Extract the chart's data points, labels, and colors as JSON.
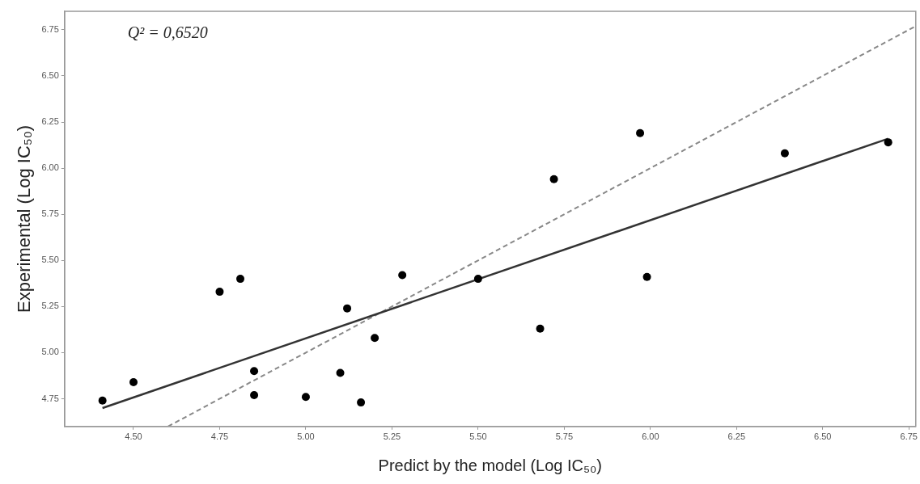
{
  "chart_data": {
    "type": "scatter",
    "xlabel": "Predict by the model (Log IC₅₀)",
    "ylabel": "Experimental (Log IC₅₀)",
    "annotations": [
      "Q² = 0,6520"
    ],
    "xlim": [
      4.3,
      6.77
    ],
    "xticks": [
      {
        "value": 4.5,
        "label": "4.50"
      },
      {
        "value": 4.75,
        "label": "4.75"
      },
      {
        "value": 5,
        "label": "5.00"
      },
      {
        "value": 5.25,
        "label": "5.25"
      },
      {
        "value": 5.5,
        "label": "5.50"
      },
      {
        "value": 5.75,
        "label": "5.75"
      },
      {
        "value": 6,
        "label": "6.00"
      },
      {
        "value": 6.25,
        "label": "6.25"
      },
      {
        "value": 6.5,
        "label": "6.50"
      },
      {
        "value": 6.75,
        "label": "6.75"
      }
    ],
    "ylim": [
      4.6,
      6.85
    ],
    "yticks": [
      {
        "value": 4.75,
        "label": "4.75"
      },
      {
        "value": 5,
        "label": "5.00"
      },
      {
        "value": 5.25,
        "label": "5.25"
      },
      {
        "value": 5.5,
        "label": "5.50"
      },
      {
        "value": 5.75,
        "label": "5.75"
      },
      {
        "value": 6,
        "label": "6.00"
      },
      {
        "value": 6.25,
        "label": "6.25"
      },
      {
        "value": 6.5,
        "label": "6.50"
      },
      {
        "value": 6.75,
        "label": "6.75"
      }
    ],
    "grid": false,
    "legend": false,
    "series": [
      {
        "color": "#000000",
        "marker": "circle",
        "x": [
          4.41,
          4.5,
          4.75,
          4.81,
          4.85,
          4.85,
          5.0,
          5.1,
          5.12,
          5.2,
          5.16,
          5.28,
          5.5,
          5.72,
          5.68,
          5.97,
          5.99,
          6.39,
          6.69
        ],
        "values": [
          4.74,
          4.84,
          5.33,
          5.4,
          4.9,
          4.77,
          4.76,
          4.89,
          5.24,
          5.08,
          4.73,
          5.42,
          5.4,
          5.94,
          5.13,
          6.19,
          5.41,
          6.08,
          6.14
        ]
      },
      {
        "type": "line",
        "color": "#333333",
        "marker": "none",
        "line_style": "solid",
        "x": [
          4.41,
          6.69
        ],
        "values": [
          4.7,
          6.16
        ]
      },
      {
        "type": "line",
        "color": "#888888",
        "marker": "none",
        "line_style": "dashed",
        "x": [
          4.6,
          6.77
        ],
        "values": [
          4.6,
          6.77
        ]
      }
    ]
  }
}
